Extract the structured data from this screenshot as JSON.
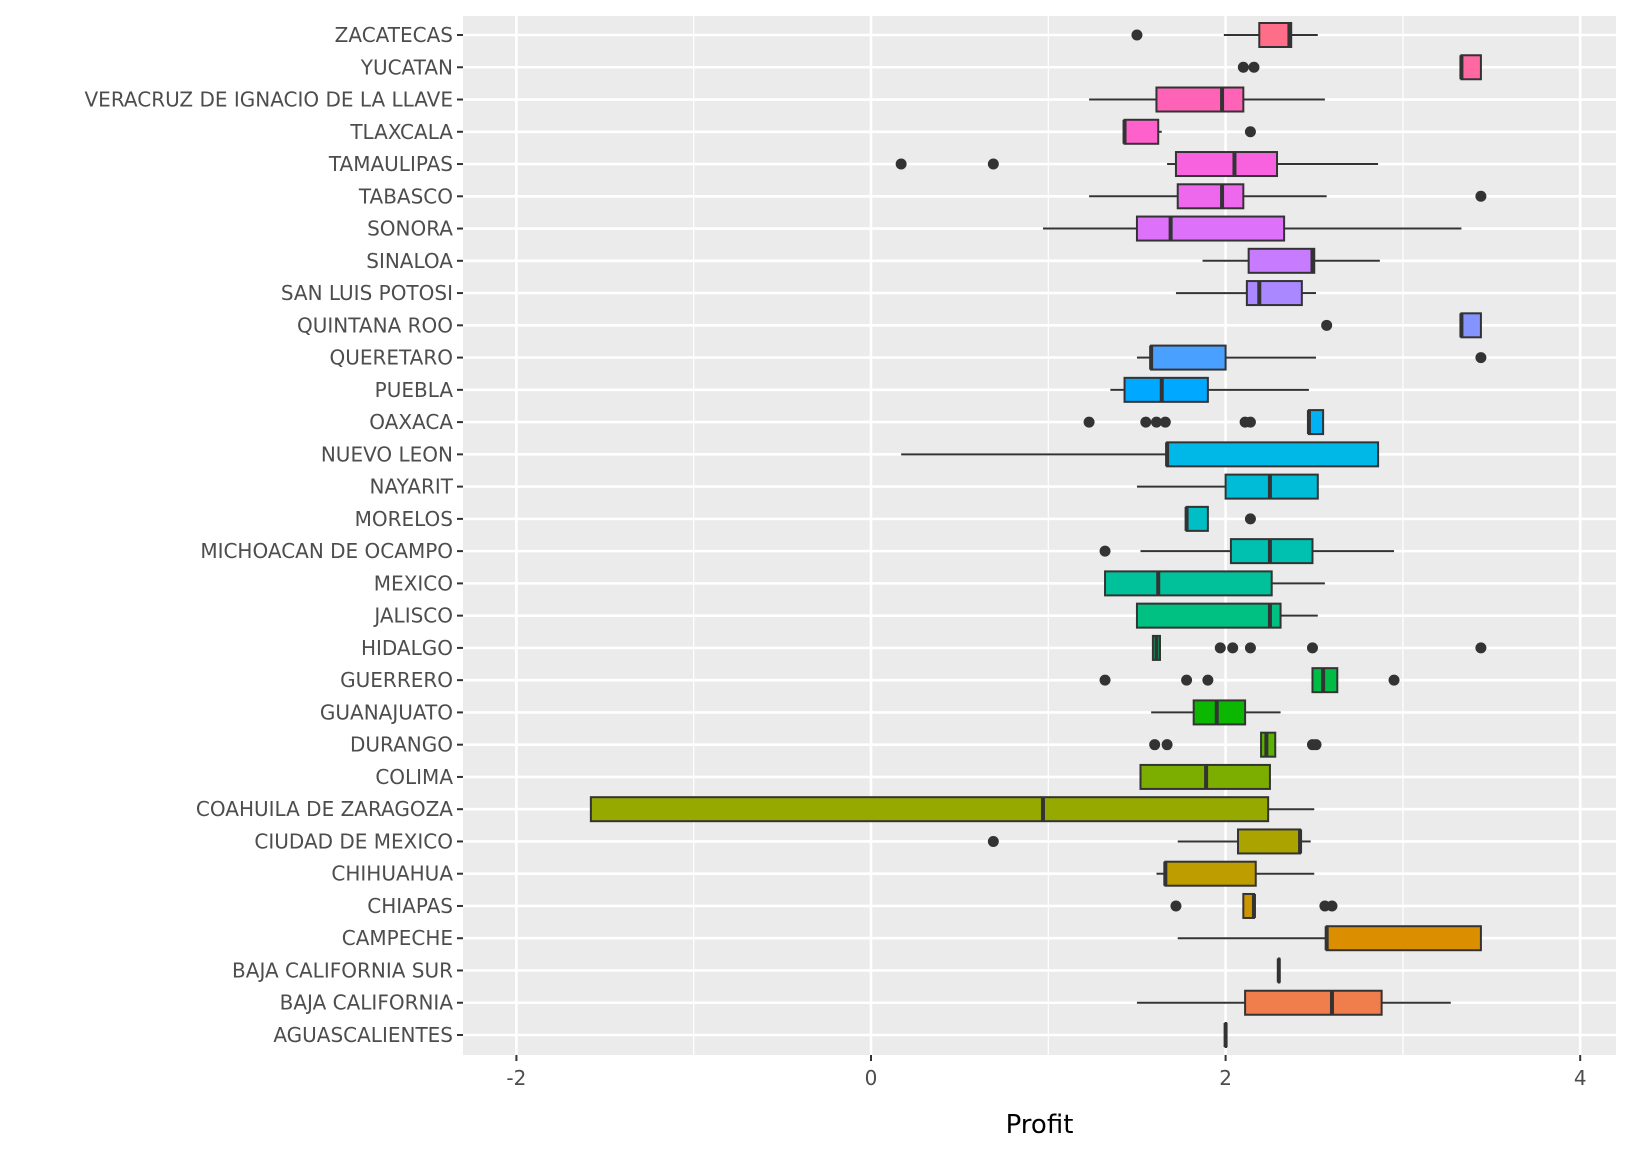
{
  "chart_data": {
    "type": "boxplot",
    "orientation": "horizontal",
    "title": "",
    "xlabel": "Profit",
    "ylabel": "",
    "xlim": [
      -2.3,
      4.2
    ],
    "x_ticks": [
      -2,
      0,
      2,
      4
    ],
    "x_tick_labels": [
      "-2",
      "0",
      "2",
      "4"
    ],
    "grid": true,
    "legend": "none",
    "categories": [
      "AGUASCALIENTES",
      "BAJA CALIFORNIA",
      "BAJA CALIFORNIA SUR",
      "CAMPECHE",
      "CHIAPAS",
      "CHIHUAHUA",
      "CIUDAD DE MEXICO",
      "COAHUILA DE ZARAGOZA",
      "COLIMA",
      "DURANGO",
      "GUANAJUATO",
      "GUERRERO",
      "HIDALGO",
      "JALISCO",
      "MEXICO",
      "MICHOACAN DE OCAMPO",
      "MORELOS",
      "NAYARIT",
      "NUEVO LEON",
      "OAXACA",
      "PUEBLA",
      "QUERETARO",
      "QUINTANA ROO",
      "SAN LUIS POTOSI",
      "SINALOA",
      "SONORA",
      "TABASCO",
      "TAMAULIPAS",
      "TLAXCALA",
      "VERACRUZ DE IGNACIO DE LA LLAVE",
      "YUCATAN",
      "ZACATECAS"
    ],
    "boxes": [
      {
        "state": "AGUASCALIENTES",
        "whisker_low": 2.0,
        "q1": 2.0,
        "median": 2.0,
        "q3": 2.0,
        "whisker_high": 2.0,
        "outliers": []
      },
      {
        "state": "BAJA CALIFORNIA",
        "whisker_low": 1.5,
        "q1": 2.11,
        "median": 2.6,
        "q3": 2.88,
        "whisker_high": 3.27,
        "outliers": []
      },
      {
        "state": "BAJA CALIFORNIA SUR",
        "whisker_low": 2.3,
        "q1": 2.3,
        "median": 2.3,
        "q3": 2.3,
        "whisker_high": 2.3,
        "outliers": []
      },
      {
        "state": "CAMPECHE",
        "whisker_low": 1.73,
        "q1": 2.57,
        "median": 2.57,
        "q3": 3.44,
        "whisker_high": 3.44,
        "outliers": []
      },
      {
        "state": "CHIAPAS",
        "whisker_low": 2.1,
        "q1": 2.1,
        "median": 2.16,
        "q3": 2.16,
        "whisker_high": 2.16,
        "outliers": [
          1.72,
          2.56,
          2.6
        ]
      },
      {
        "state": "CHIHUAHUA",
        "whisker_low": 1.61,
        "q1": 1.66,
        "median": 1.66,
        "q3": 2.17,
        "whisker_high": 2.5,
        "outliers": []
      },
      {
        "state": "CIUDAD DE MEXICO",
        "whisker_low": 1.73,
        "q1": 2.07,
        "median": 2.42,
        "q3": 2.42,
        "whisker_high": 2.48,
        "outliers": [
          0.69
        ]
      },
      {
        "state": "COAHUILA DE ZARAGOZA",
        "whisker_low": -1.58,
        "q1": -1.58,
        "median": 0.97,
        "q3": 2.24,
        "whisker_high": 2.5,
        "outliers": []
      },
      {
        "state": "COLIMA",
        "whisker_low": 1.52,
        "q1": 1.52,
        "median": 1.89,
        "q3": 2.25,
        "whisker_high": 2.25,
        "outliers": []
      },
      {
        "state": "DURANGO",
        "whisker_low": 2.2,
        "q1": 2.2,
        "median": 2.23,
        "q3": 2.28,
        "whisker_high": 2.28,
        "outliers": [
          1.6,
          1.67,
          2.49,
          2.51
        ]
      },
      {
        "state": "GUANAJUATO",
        "whisker_low": 1.58,
        "q1": 1.82,
        "median": 1.95,
        "q3": 2.11,
        "whisker_high": 2.31,
        "outliers": []
      },
      {
        "state": "GUERRERO",
        "whisker_low": 2.49,
        "q1": 2.49,
        "median": 2.55,
        "q3": 2.63,
        "whisker_high": 2.63,
        "outliers": [
          1.32,
          1.78,
          1.9,
          2.95
        ]
      },
      {
        "state": "HIDALGO",
        "whisker_low": 1.59,
        "q1": 1.59,
        "median": 1.61,
        "q3": 1.63,
        "whisker_high": 1.63,
        "outliers": [
          1.97,
          2.04,
          2.14,
          2.49,
          3.44
        ]
      },
      {
        "state": "JALISCO",
        "whisker_low": 1.5,
        "q1": 1.5,
        "median": 2.25,
        "q3": 2.31,
        "whisker_high": 2.52,
        "outliers": []
      },
      {
        "state": "MEXICO",
        "whisker_low": 1.32,
        "q1": 1.32,
        "median": 1.62,
        "q3": 2.26,
        "whisker_high": 2.56,
        "outliers": []
      },
      {
        "state": "MICHOACAN DE OCAMPO",
        "whisker_low": 1.52,
        "q1": 2.03,
        "median": 2.25,
        "q3": 2.49,
        "whisker_high": 2.95,
        "outliers": [
          1.32
        ]
      },
      {
        "state": "MORELOS",
        "whisker_low": 1.78,
        "q1": 1.78,
        "median": 1.78,
        "q3": 1.9,
        "whisker_high": 1.9,
        "outliers": [
          2.14
        ]
      },
      {
        "state": "NAYARIT",
        "whisker_low": 1.5,
        "q1": 2.0,
        "median": 2.25,
        "q3": 2.52,
        "whisker_high": 2.52,
        "outliers": []
      },
      {
        "state": "NUEVO LEON",
        "whisker_low": 0.17,
        "q1": 1.67,
        "median": 1.67,
        "q3": 2.86,
        "whisker_high": 2.86,
        "outliers": []
      },
      {
        "state": "OAXACA",
        "whisker_low": 2.47,
        "q1": 2.47,
        "median": 2.47,
        "q3": 2.55,
        "whisker_high": 2.55,
        "outliers": [
          1.23,
          1.55,
          1.61,
          1.66,
          2.11,
          2.14
        ]
      },
      {
        "state": "PUEBLA",
        "whisker_low": 1.35,
        "q1": 1.43,
        "median": 1.64,
        "q3": 1.9,
        "whisker_high": 2.47,
        "outliers": []
      },
      {
        "state": "QUERETARO",
        "whisker_low": 1.5,
        "q1": 1.58,
        "median": 1.58,
        "q3": 2.0,
        "whisker_high": 2.51,
        "outliers": [
          3.44
        ]
      },
      {
        "state": "QUINTANA ROO",
        "whisker_low": 3.33,
        "q1": 3.33,
        "median": 3.33,
        "q3": 3.44,
        "whisker_high": 3.44,
        "outliers": [
          2.57
        ]
      },
      {
        "state": "SAN LUIS POTOSI",
        "whisker_low": 1.72,
        "q1": 2.12,
        "median": 2.19,
        "q3": 2.43,
        "whisker_high": 2.51,
        "outliers": []
      },
      {
        "state": "SINALOA",
        "whisker_low": 1.87,
        "q1": 2.13,
        "median": 2.49,
        "q3": 2.5,
        "whisker_high": 2.87,
        "outliers": []
      },
      {
        "state": "SONORA",
        "whisker_low": 0.97,
        "q1": 1.5,
        "median": 1.69,
        "q3": 2.33,
        "whisker_high": 3.33,
        "outliers": []
      },
      {
        "state": "TABASCO",
        "whisker_low": 1.23,
        "q1": 1.73,
        "median": 1.98,
        "q3": 2.1,
        "whisker_high": 2.57,
        "outliers": [
          3.44
        ]
      },
      {
        "state": "TAMAULIPAS",
        "whisker_low": 1.67,
        "q1": 1.72,
        "median": 2.05,
        "q3": 2.29,
        "whisker_high": 2.86,
        "outliers": [
          0.17,
          0.69
        ]
      },
      {
        "state": "TLAXCALA",
        "whisker_low": 1.43,
        "q1": 1.43,
        "median": 1.43,
        "q3": 1.62,
        "whisker_high": 1.64,
        "outliers": [
          2.14
        ]
      },
      {
        "state": "VERACRUZ DE IGNACIO DE LA LLAVE",
        "whisker_low": 1.23,
        "q1": 1.61,
        "median": 1.98,
        "q3": 2.1,
        "whisker_high": 2.56,
        "outliers": []
      },
      {
        "state": "YUCATAN",
        "whisker_low": 3.33,
        "q1": 3.33,
        "median": 3.33,
        "q3": 3.44,
        "whisker_high": 3.44,
        "outliers": [
          2.1,
          2.16
        ]
      },
      {
        "state": "ZACATECAS",
        "whisker_low": 1.99,
        "q1": 2.19,
        "median": 2.36,
        "q3": 2.37,
        "whisker_high": 2.52,
        "outliers": [
          1.5
        ]
      }
    ],
    "colors": {
      "panel_background": "#ebebeb",
      "grid_major": "#ffffff",
      "box_outline": "#333333",
      "outlier": "#333333",
      "axis_text": "#4d4d4d",
      "palette": "hue (first #F8766D ... last #FF6C91)"
    }
  }
}
